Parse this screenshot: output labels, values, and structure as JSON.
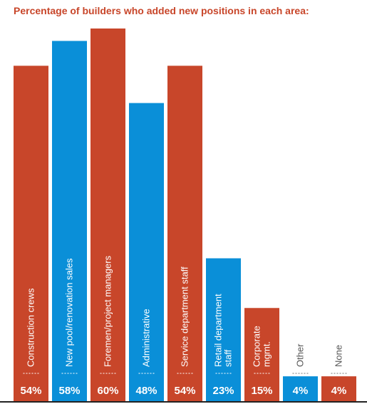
{
  "chart_data": {
    "type": "bar",
    "title": "Percentage of builders who added new positions in each area:",
    "categories": [
      "Construction crews",
      "New pool/renovation sales",
      "Foremen/project managers",
      "Administrative",
      "Service department staff",
      "Retail department staff",
      "Corporate mgmt.",
      "Other",
      "None"
    ],
    "category_lines": [
      [
        "Construction crews"
      ],
      [
        "New pool/renovation sales"
      ],
      [
        "Foremen/project managers"
      ],
      [
        "Administrative"
      ],
      [
        "Service department staff"
      ],
      [
        "Retail department",
        "staff"
      ],
      [
        "Corporate",
        "mgmt."
      ],
      [
        "Other"
      ],
      [
        "None"
      ]
    ],
    "values": [
      54,
      58,
      60,
      48,
      54,
      23,
      15,
      4,
      4
    ],
    "value_labels": [
      "54%",
      "58%",
      "60%",
      "48%",
      "54%",
      "23%",
      "15%",
      "4%",
      "4%"
    ],
    "unit": "%",
    "ylim": [
      0,
      60
    ],
    "grid": false,
    "colors": [
      "#c8462a",
      "#0a8fd8",
      "#c8462a",
      "#0a8fd8",
      "#c8462a",
      "#0a8fd8",
      "#c8462a",
      "#0a8fd8",
      "#c8462a"
    ],
    "colors_meta": {
      "baseline": "#222222",
      "inside_label": "#ffffff",
      "title": "#c8462a"
    }
  }
}
